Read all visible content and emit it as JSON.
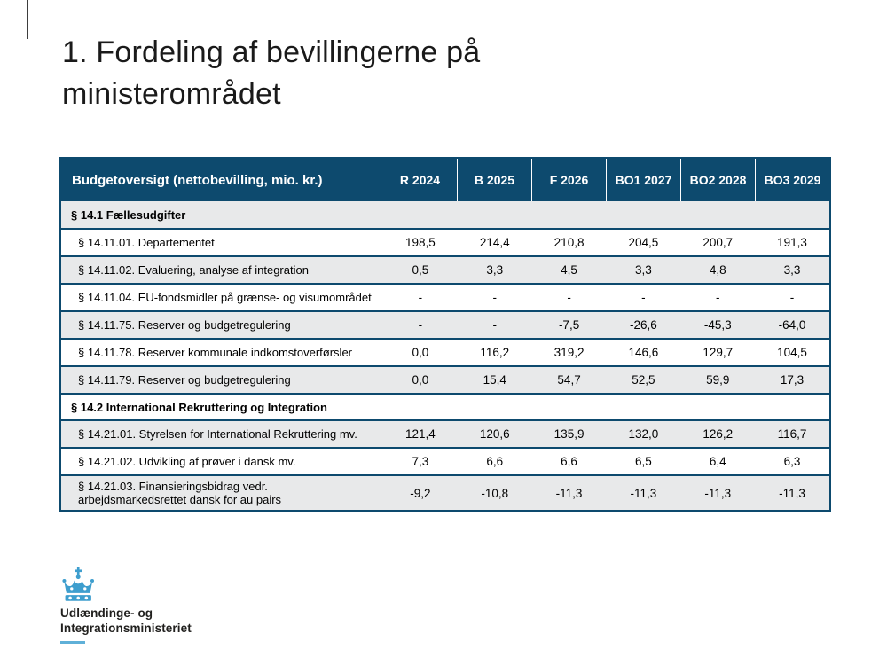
{
  "slide": {
    "title_line1": "1. Fordeling af bevillingerne på",
    "title_line2": "ministerområdet"
  },
  "table": {
    "header": {
      "label": "Budgetoversigt (nettobevilling, mio. kr.)",
      "columns": [
        "R 2024",
        "B 2025",
        "F 2026",
        "BO1 2027",
        "BO2 2028",
        "BO3 2029"
      ]
    },
    "rows": [
      {
        "type": "section",
        "label": "§ 14.1 Fællesudgifter"
      },
      {
        "type": "data",
        "label": "§ 14.11.01. Departementet",
        "values": [
          "198,5",
          "214,4",
          "210,8",
          "204,5",
          "200,7",
          "191,3"
        ]
      },
      {
        "type": "data",
        "label": "§ 14.11.02. Evaluering, analyse af integration",
        "values": [
          "0,5",
          "3,3",
          "4,5",
          "3,3",
          "4,8",
          "3,3"
        ]
      },
      {
        "type": "data",
        "label": "§ 14.11.04. EU-fondsmidler på grænse- og visumområdet",
        "values": [
          "-",
          "-",
          "-",
          "-",
          "-",
          "-"
        ]
      },
      {
        "type": "data",
        "label": "§ 14.11.75. Reserver og budgetregulering",
        "values": [
          "-",
          "-",
          "-7,5",
          "-26,6",
          "-45,3",
          "-64,0"
        ]
      },
      {
        "type": "data",
        "label": "§ 14.11.78. Reserver kommunale indkomstoverførsler",
        "values": [
          "0,0",
          "116,2",
          "319,2",
          "146,6",
          "129,7",
          "104,5"
        ]
      },
      {
        "type": "data",
        "label": "§ 14.11.79. Reserver og budgetregulering",
        "values": [
          "0,0",
          "15,4",
          "54,7",
          "52,5",
          "59,9",
          "17,3"
        ]
      },
      {
        "type": "section",
        "label": "§ 14.2 International Rekruttering og Integration"
      },
      {
        "type": "data",
        "label": "§ 14.21.01. Styrelsen for International Rekruttering mv.",
        "values": [
          "121,4",
          "120,6",
          "135,9",
          "132,0",
          "126,2",
          "116,7"
        ]
      },
      {
        "type": "data",
        "label": "§ 14.21.02. Udvikling af prøver i dansk mv.",
        "values": [
          "7,3",
          "6,6",
          "6,6",
          "6,5",
          "6,4",
          "6,3"
        ]
      },
      {
        "type": "data",
        "label": "§ 14.21.03. Finansieringsbidrag vedr. arbejdsmarkedsrettet dansk for au pairs",
        "values": [
          "-9,2",
          "-10,8",
          "-11,3",
          "-11,3",
          "-11,3",
          "-11,3"
        ]
      }
    ]
  },
  "footer": {
    "ministry_line1": "Udlændinge- og",
    "ministry_line2": "Integrationsministeriet",
    "logo_icon": "crown-icon"
  },
  "colors": {
    "header_bg": "#0d4a6e",
    "table_border": "#0d4a6e",
    "row_alt_bg": "#e8e9ea",
    "crown_blue": "#3e9ece",
    "underline_blue": "#5fb0d8",
    "title_color": "#1a1a1a"
  }
}
